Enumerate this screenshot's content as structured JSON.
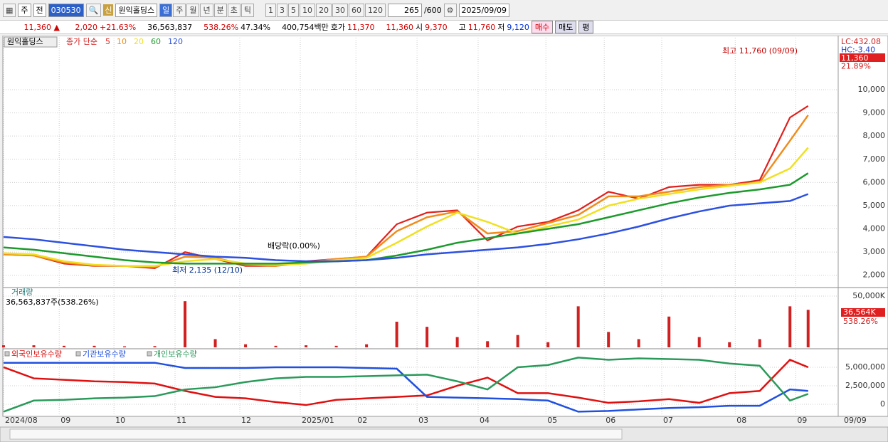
{
  "toolbar": {
    "unit": "주",
    "prev": "전",
    "code": "030530",
    "tag": "신",
    "name": "원익홀딩스",
    "periods": [
      "일",
      "주",
      "월",
      "년",
      "분",
      "초",
      "틱"
    ],
    "intervals": [
      "1",
      "3",
      "5",
      "10",
      "20",
      "30",
      "60",
      "120"
    ],
    "count": "265",
    "count_max": "/600",
    "date": "2025/09/09"
  },
  "info": {
    "price": "11,360 ▲",
    "change": "2,020",
    "rate": "+21.63%",
    "volume": "36,563,837",
    "volume_ratio": "538.26%",
    "turnover": "47.34%",
    "amount": "400,754백만",
    "quote_label": "호가",
    "ask": "11,370",
    "bid": "11,360",
    "open_label": "시",
    "open": "9,370",
    "high_label": "고",
    "high": "11,760",
    "low_label": "저",
    "low": "9,120",
    "buy": "매수",
    "sell": "매도",
    "avg": "평"
  },
  "chart_data": [
    {
      "type": "line",
      "title": "원익홀딩스",
      "legend_title": "종가 단순",
      "x": [
        0,
        1,
        2,
        3,
        4,
        5,
        6,
        7,
        8,
        9,
        10,
        11,
        12,
        13,
        14,
        15,
        16,
        17,
        18,
        19,
        20,
        21,
        22,
        23,
        24,
        25,
        26,
        26.6
      ],
      "xlim": [
        0,
        27.5
      ],
      "ylim": [
        1500,
        12270
      ],
      "yticks": [
        {
          "value": 2000,
          "label": "2,000"
        },
        {
          "value": 3000,
          "label": "3,000"
        },
        {
          "value": 4000,
          "label": "4,000"
        },
        {
          "value": 5000,
          "label": "5,000"
        },
        {
          "value": 6000,
          "label": "6,000"
        },
        {
          "value": 7000,
          "label": "7,000"
        },
        {
          "value": 8000,
          "label": "8,000"
        },
        {
          "value": 9000,
          "label": "9,000"
        },
        {
          "value": 10000,
          "label": "10,000"
        }
      ],
      "series": [
        {
          "name": "5",
          "color": "#e0201c",
          "values": [
            2900,
            2850,
            2500,
            2400,
            2400,
            2300,
            3000,
            2700,
            2400,
            2400,
            2600,
            2700,
            2800,
            4200,
            4700,
            4800,
            3500,
            4100,
            4300,
            4800,
            5600,
            5300,
            5800,
            5900,
            5900,
            6100,
            8800,
            9300
          ]
        },
        {
          "name": "10",
          "color": "#f08c1c",
          "values": [
            2900,
            2850,
            2550,
            2420,
            2400,
            2350,
            2800,
            2750,
            2450,
            2400,
            2550,
            2700,
            2800,
            3900,
            4500,
            4750,
            3800,
            3900,
            4250,
            4600,
            5400,
            5400,
            5600,
            5800,
            5900,
            6000,
            7800,
            8900
          ]
        },
        {
          "name": "20",
          "color": "#f0e020",
          "values": [
            2950,
            2900,
            2600,
            2450,
            2400,
            2400,
            2600,
            2700,
            2500,
            2450,
            2500,
            2650,
            2750,
            3400,
            4100,
            4700,
            4300,
            3800,
            4100,
            4400,
            5000,
            5300,
            5500,
            5700,
            5850,
            6000,
            6600,
            7500
          ]
        },
        {
          "name": "60",
          "color": "#1c9a2c",
          "values": [
            3200,
            3100,
            2950,
            2800,
            2650,
            2550,
            2500,
            2500,
            2500,
            2500,
            2550,
            2600,
            2650,
            2850,
            3100,
            3400,
            3600,
            3800,
            4000,
            4200,
            4500,
            4800,
            5100,
            5350,
            5550,
            5700,
            5900,
            6400
          ]
        },
        {
          "name": "120",
          "color": "#2c50e0",
          "values": [
            3650,
            3550,
            3400,
            3250,
            3100,
            3000,
            2900,
            2800,
            2750,
            2650,
            2600,
            2600,
            2650,
            2750,
            2900,
            3000,
            3100,
            3200,
            3350,
            3550,
            3800,
            4100,
            4450,
            4750,
            5000,
            5100,
            5200,
            5500
          ]
        }
      ],
      "annotations": [
        "최고 11,760 (09/09)",
        "최저 2,135 (12/10)",
        "배당락(0.00%)"
      ],
      "right_labels": [
        "LC:432.08",
        "HC:-3.40",
        "11,360",
        "21.89%"
      ]
    },
    {
      "type": "bar",
      "title": "거래량",
      "subtitle": "36,563,837주(538.26%)",
      "color": "#d02020",
      "x": [
        0,
        1,
        2,
        3,
        4,
        5,
        6,
        7,
        8,
        9,
        10,
        11,
        12,
        13,
        14,
        15,
        16,
        17,
        18,
        19,
        20,
        21,
        22,
        23,
        24,
        25,
        26,
        26.6
      ],
      "xlim": [
        0,
        27.5
      ],
      "ylim": [
        0,
        57600
      ],
      "yticks": [
        {
          "value": 50000,
          "label": "50,000K"
        }
      ],
      "values": [
        2000,
        2000,
        1500,
        1500,
        1000,
        1200,
        45000,
        8000,
        3000,
        1500,
        2000,
        1500,
        3000,
        25000,
        20000,
        10000,
        6000,
        12000,
        5000,
        40000,
        15000,
        8000,
        30000,
        10000,
        5000,
        8000,
        40000,
        36564
      ],
      "right_labels": [
        "36,564K",
        "538.26%"
      ]
    },
    {
      "type": "line",
      "x": [
        0,
        1,
        2,
        3,
        4,
        5,
        6,
        7,
        8,
        9,
        10,
        11,
        12,
        13,
        14,
        15,
        16,
        17,
        18,
        19,
        20,
        21,
        22,
        23,
        24,
        25,
        26,
        26.6
      ],
      "xlim": [
        0,
        27.5
      ],
      "ylim": [
        -1440000,
        7300000
      ],
      "yticks": [
        0,
        {
          "value": 2500000,
          "label": "2,500,000"
        },
        {
          "value": 5000000,
          "label": "5,000,000"
        }
      ],
      "xticks": [
        {
          "value": 0,
          "label": "2024/08"
        },
        {
          "value": 1.84,
          "label": "09"
        },
        {
          "value": 3.65,
          "label": "10"
        },
        {
          "value": 5.67,
          "label": "11"
        },
        {
          "value": 7.81,
          "label": "12"
        },
        {
          "value": 9.81,
          "label": "2025/01"
        },
        {
          "value": 11.65,
          "label": "02"
        },
        {
          "value": 13.67,
          "label": "03"
        },
        {
          "value": 15.69,
          "label": "04"
        },
        {
          "value": 17.93,
          "label": "05"
        },
        {
          "value": 19.86,
          "label": "06"
        },
        {
          "value": 21.76,
          "label": "07"
        },
        {
          "value": 24.19,
          "label": "08"
        },
        {
          "value": 26.19,
          "label": "09"
        }
      ],
      "last_date": "09/09",
      "series": [
        {
          "name": "외국인보유수량",
          "color": "#e01010",
          "values": [
            5000000,
            3500000,
            3300000,
            3100000,
            3000000,
            2800000,
            1800000,
            1000000,
            800000,
            300000,
            -100000,
            600000,
            800000,
            1000000,
            1200000,
            2500000,
            3600000,
            1500000,
            1500000,
            900000,
            200000,
            400000,
            700000,
            200000,
            1500000,
            1800000,
            6000000,
            5000000
          ]
        },
        {
          "name": "기관보유수량",
          "color": "#2050e0",
          "values": [
            5600000,
            5600000,
            5600000,
            5600000,
            5600000,
            5600000,
            4900000,
            4900000,
            4900000,
            5000000,
            5000000,
            5000000,
            4900000,
            4800000,
            1000000,
            900000,
            800000,
            700000,
            500000,
            -1000000,
            -900000,
            -700000,
            -500000,
            -400000,
            -200000,
            -200000,
            2000000,
            1800000
          ]
        },
        {
          "name": "개인보유수량",
          "color": "#2a9a5a",
          "values": [
            -1000000,
            500000,
            600000,
            800000,
            900000,
            1100000,
            2000000,
            2300000,
            3000000,
            3500000,
            3700000,
            3700000,
            3800000,
            3900000,
            4000000,
            3100000,
            2000000,
            5000000,
            5300000,
            6300000,
            6000000,
            6200000,
            6100000,
            6000000,
            5500000,
            5200000,
            500000,
            1400000
          ]
        }
      ]
    }
  ]
}
